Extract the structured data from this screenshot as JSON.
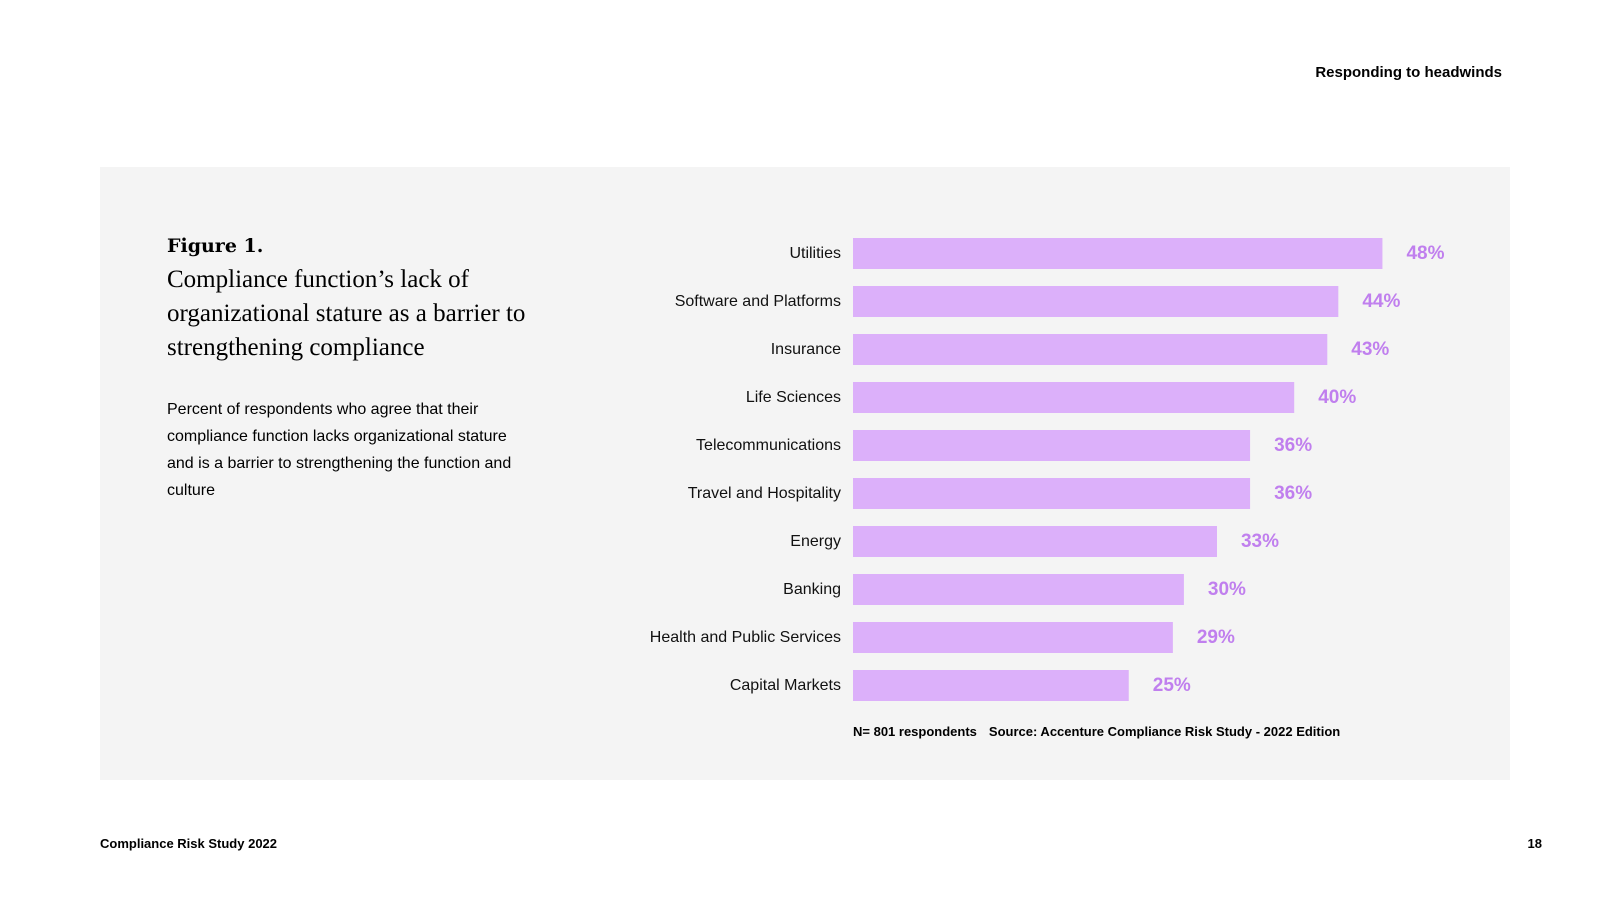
{
  "header": {
    "title": "Responding to headwinds"
  },
  "figure": {
    "label": "Figure 1.",
    "title": "Compliance function’s lack of organizational stature as a barrier to strengthening compliance",
    "description": "Percent of respondents who agree that their compliance function lacks organizational stature and is a barrier to strengthening the function and culture",
    "sample": "N= 801 respondents",
    "source": "Source: Accenture Compliance Risk Study - 2022 Edition"
  },
  "colors": {
    "bar": "#dcb0fa",
    "value_label": "#c07fee",
    "panel": "#f4f4f4"
  },
  "chart_data": {
    "type": "bar",
    "orientation": "horizontal",
    "categories": [
      "Utilities",
      "Software and Platforms",
      "Insurance",
      "Life Sciences",
      "Telecommunications",
      "Travel and Hospitality",
      "Energy",
      "Banking",
      "Health and Public Services",
      "Capital Markets"
    ],
    "values": [
      48,
      44,
      43,
      40,
      36,
      36,
      33,
      30,
      29,
      25
    ],
    "value_labels": [
      "48%",
      "44%",
      "43%",
      "40%",
      "36%",
      "36%",
      "33%",
      "30%",
      "29%",
      "25%"
    ],
    "unit": "%",
    "title": "",
    "xlabel": "",
    "ylabel": "",
    "grid": false
  },
  "footer": {
    "left": "Compliance Risk Study 2022",
    "page_number": "18"
  }
}
